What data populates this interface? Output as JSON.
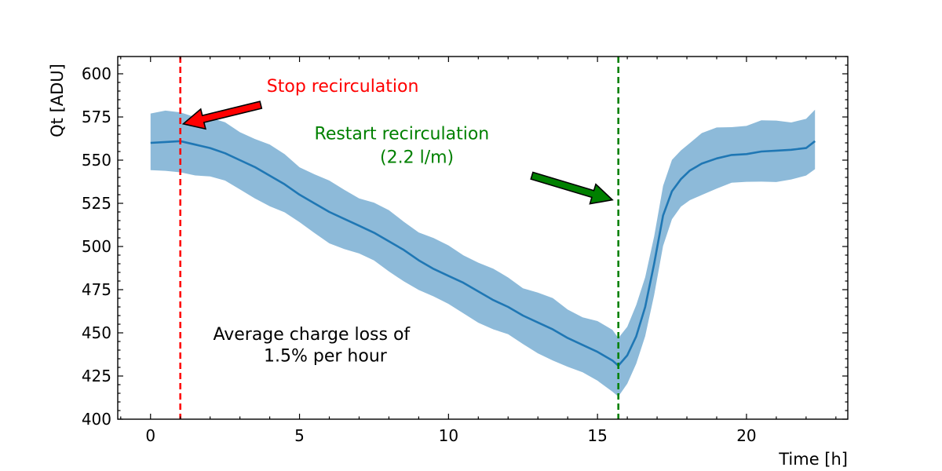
{
  "chart_data": {
    "type": "line",
    "xlabel": "Time [h]",
    "ylabel": "Qt [ADU]",
    "xlim": [
      -1.1,
      23.4
    ],
    "ylim": [
      400,
      610
    ],
    "xticks": [
      0,
      5,
      10,
      15,
      20
    ],
    "yticks": [
      400,
      425,
      450,
      475,
      500,
      525,
      550,
      575,
      600
    ],
    "x_tick_labels": [
      "0",
      "5",
      "10",
      "15",
      "20"
    ],
    "y_tick_labels": [
      "400",
      "425",
      "450",
      "475",
      "500",
      "525",
      "550",
      "575",
      "600"
    ],
    "grid": false,
    "colors": {
      "line": "#1f77b4",
      "band": "#8dbad9",
      "stop": "#ff0000",
      "restart": "#008000",
      "text": "#000000"
    },
    "series": [
      {
        "name": "mean",
        "band_halfwidth": 17,
        "x": [
          0,
          0.5,
          1.0,
          1.5,
          2,
          2.5,
          3,
          3.5,
          4,
          4.5,
          5,
          5.5,
          6,
          6.5,
          7,
          7.5,
          8,
          8.5,
          9,
          9.5,
          10,
          10.5,
          11,
          11.5,
          12,
          12.5,
          13,
          13.5,
          14,
          14.5,
          15,
          15.5,
          15.7,
          16,
          16.3,
          16.6,
          16.9,
          17.2,
          17.5,
          17.8,
          18.1,
          18.5,
          19,
          19.5,
          20,
          20.5,
          21,
          21.5,
          22,
          22.3
        ],
        "y": [
          560,
          560.5,
          561,
          559,
          557,
          554,
          550,
          546,
          541,
          536,
          530,
          525,
          520,
          516,
          512,
          508,
          503,
          498,
          492,
          487,
          483,
          479,
          474,
          469,
          465,
          460,
          456,
          452,
          447,
          443,
          439,
          434,
          431,
          437,
          448,
          465,
          490,
          518,
          532,
          539,
          544,
          548,
          551,
          553,
          553.5,
          555,
          555.5,
          556,
          557,
          561
        ]
      }
    ],
    "vlines": [
      {
        "label": "Stop recirculation",
        "x": 1.0,
        "color": "#ff0000"
      },
      {
        "label": "Restart recirculation",
        "x": 15.7,
        "color": "#008000"
      }
    ],
    "annotations": [
      {
        "text": "Stop recirculation",
        "x": 3.9,
        "y": 589.5,
        "color": "#ff0000"
      },
      {
        "text": "Restart recirculation",
        "x": 5.5,
        "y": 562,
        "color": "#008000"
      },
      {
        "text": "(2.2 l/m)",
        "x": 7.7,
        "y": 548.5,
        "color": "#008000"
      },
      {
        "text": "Average charge loss of",
        "x": 2.1,
        "y": 446,
        "color": "#000000"
      },
      {
        "text": "1.5% per hour",
        "x": 3.8,
        "y": 433.5,
        "color": "#000000"
      }
    ],
    "arrows": [
      {
        "name": "stop-arrow",
        "from": [
          3.7,
          582
        ],
        "to": [
          1.1,
          571
        ],
        "color": "#ff0000"
      },
      {
        "name": "restart-arrow",
        "from": [
          12.8,
          541
        ],
        "to": [
          15.5,
          527
        ],
        "color": "#008000"
      }
    ]
  }
}
